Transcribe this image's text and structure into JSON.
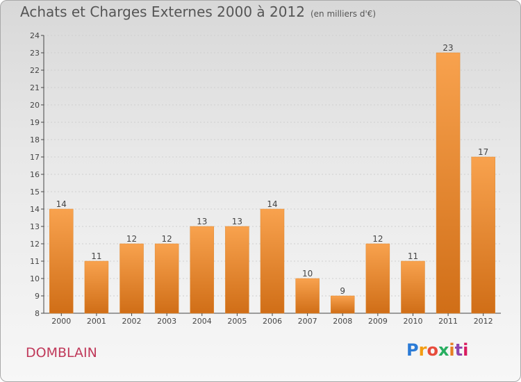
{
  "title": "Achats et Charges Externes 2000 à 2012",
  "subtitle": "(en milliers d'€)",
  "commune": "DOMBLAIN",
  "logo": {
    "text": "Proxiti",
    "colors": [
      "#2b7bd6",
      "#f39c12",
      "#e74c3c",
      "#27ae60",
      "#e67e22",
      "#8e44ad",
      "#d81b60"
    ]
  },
  "colors": {
    "bar_top": "#f8a24e",
    "bar_bottom": "#d06e17",
    "axis": "#444444",
    "grid": "#cfcfcf"
  },
  "chart_data": {
    "type": "bar",
    "categories": [
      "2000",
      "2001",
      "2002",
      "2003",
      "2004",
      "2005",
      "2006",
      "2007",
      "2008",
      "2009",
      "2010",
      "2011",
      "2012"
    ],
    "values": [
      14,
      11,
      12,
      12,
      13,
      13,
      14,
      10,
      9,
      12,
      11,
      23,
      17
    ],
    "ylim": [
      8,
      24
    ],
    "yticks": [
      8,
      9,
      10,
      11,
      12,
      13,
      14,
      15,
      16,
      17,
      18,
      19,
      20,
      21,
      22,
      23,
      24
    ],
    "grid": true
  }
}
